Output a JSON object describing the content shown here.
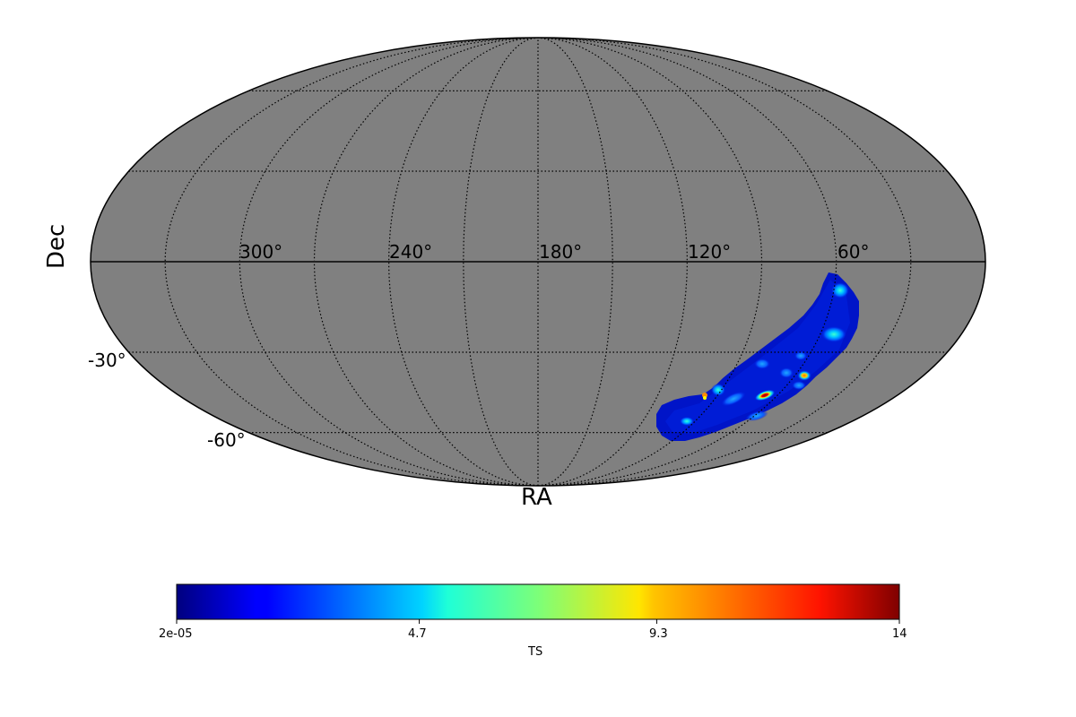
{
  "chart_data": {
    "type": "heatmap",
    "projection": "mollweide",
    "title": "",
    "xlabel": "RA",
    "ylabel": "Dec",
    "background_color": "#808080",
    "grid": true,
    "graticule": {
      "meridian_step_deg": 30,
      "parallels_deg": [
        -60,
        -30,
        30,
        60
      ],
      "style": "dotted"
    },
    "ra_tick_labels": [
      {
        "value": 300,
        "label": "300°"
      },
      {
        "value": 240,
        "label": "240°"
      },
      {
        "value": 180,
        "label": "180°"
      },
      {
        "value": 120,
        "label": "120°"
      },
      {
        "value": 60,
        "label": "60°"
      }
    ],
    "dec_tick_labels": [
      {
        "value": -30,
        "label": "-30°"
      },
      {
        "value": -60,
        "label": "-60°"
      }
    ],
    "colormap": "jet",
    "colorbar": {
      "label": "TS",
      "orientation": "horizontal",
      "min": 2e-05,
      "max": 14,
      "ticks": [
        {
          "value": 2e-05,
          "label": "2e-05"
        },
        {
          "value": 4.7,
          "label": "4.7"
        },
        {
          "value": 9.3,
          "label": "9.3"
        },
        {
          "value": 14,
          "label": "14"
        }
      ]
    },
    "coverage_region": {
      "description": "Elongated band of nonzero TS in southern sky, RA ~30°–110°, Dec ~0° to -65°; mostly low TS (~0–2) with hot spots",
      "hotspots": [
        {
          "ra": 78,
          "dec": -47,
          "ts": 13.5
        },
        {
          "ra": 64,
          "dec": -38,
          "ts": 10.5
        },
        {
          "ra": 107,
          "dec": -44,
          "ts": 10.0
        },
        {
          "ra": 47,
          "dec": -8,
          "ts": 5.5
        },
        {
          "ra": 52,
          "dec": -22,
          "ts": 4.0
        },
        {
          "ra": 102,
          "dec": -43,
          "ts": 4.0
        },
        {
          "ra": 90,
          "dec": -37,
          "ts": 3.0
        },
        {
          "ra": 82,
          "dec": -54,
          "ts": 3.5
        },
        {
          "ra": 71,
          "dec": -38,
          "ts": 3.0
        },
        {
          "ra": 66,
          "dec": -32,
          "ts": 3.0
        },
        {
          "ra": 114,
          "dec": -58,
          "ts": 3.0
        }
      ]
    }
  },
  "labels": {
    "xlabel": "RA",
    "ylabel": "Dec",
    "colorbar_label": "TS"
  }
}
